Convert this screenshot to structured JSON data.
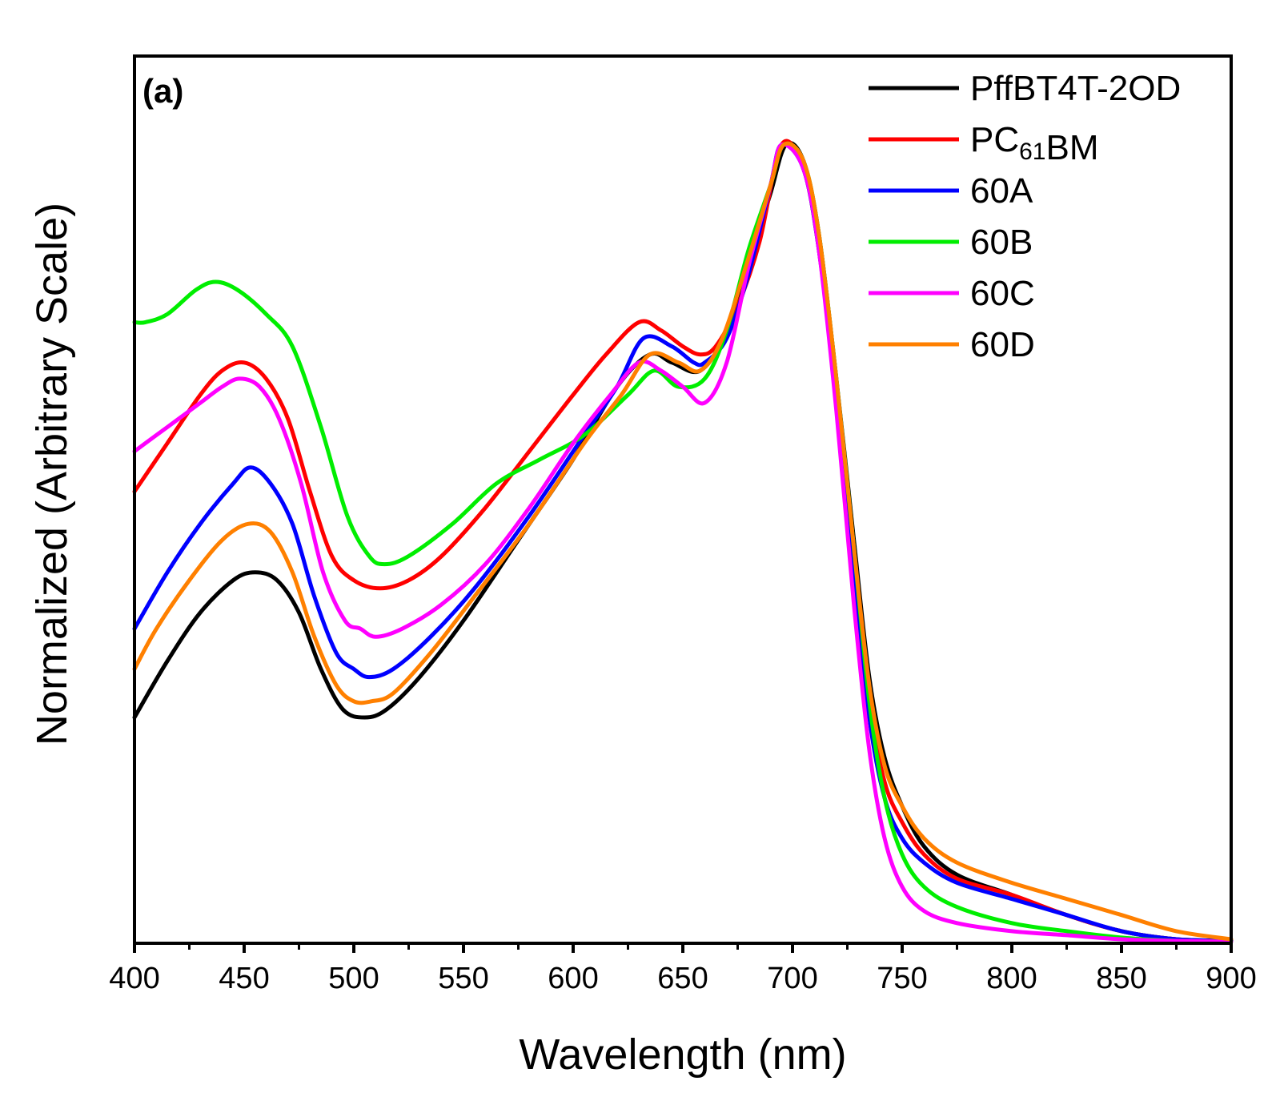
{
  "chart_data": {
    "type": "line",
    "panel_label": "(a)",
    "xlabel": "Wavelength (nm)",
    "ylabel": "Normalized (Arbitrary Scale)",
    "xlim": [
      400,
      900
    ],
    "ylim": [
      0,
      1.1
    ],
    "x_ticks": [
      400,
      450,
      500,
      550,
      600,
      650,
      700,
      750,
      800,
      850,
      900
    ],
    "x_tick_labels": [
      "400",
      "450",
      "500",
      "550",
      "600",
      "650",
      "700",
      "750",
      "800",
      "850",
      "900"
    ],
    "y_ticks_shown": false,
    "grid": false,
    "legend_position": "top-right",
    "series": [
      {
        "name": "PffBT4T-2OD",
        "label_parts": [
          {
            "text": "PffBT4T-2OD",
            "sub": false
          }
        ],
        "color": "#000000",
        "x": [
          400,
          415,
          430,
          445,
          455,
          465,
          475,
          485,
          495,
          505,
          515,
          530,
          550,
          575,
          600,
          620,
          635,
          645,
          658,
          670,
          682,
          690,
          697,
          705,
          712,
          720,
          728,
          735,
          742,
          750,
          760,
          775,
          800,
          825,
          850,
          875,
          900
        ],
        "y": [
          0.28,
          0.35,
          0.41,
          0.45,
          0.46,
          0.45,
          0.41,
          0.34,
          0.29,
          0.28,
          0.29,
          0.33,
          0.4,
          0.5,
          0.6,
          0.69,
          0.73,
          0.72,
          0.71,
          0.76,
          0.86,
          0.93,
          0.99,
          0.97,
          0.88,
          0.7,
          0.5,
          0.33,
          0.23,
          0.17,
          0.12,
          0.085,
          0.06,
          0.035,
          0.015,
          0.005,
          0.003
        ]
      },
      {
        "name": "PC61BM",
        "label_parts": [
          {
            "text": "PC",
            "sub": false
          },
          {
            "text": "61",
            "sub": true
          },
          {
            "text": "BM",
            "sub": false
          }
        ],
        "color": "#ff0000",
        "x": [
          400,
          415,
          430,
          440,
          450,
          460,
          470,
          480,
          490,
          500,
          512,
          525,
          540,
          560,
          580,
          600,
          615,
          630,
          640,
          650,
          658,
          665,
          675,
          685,
          695,
          705,
          712,
          720,
          728,
          735,
          742,
          750,
          760,
          775,
          800,
          825,
          850,
          875,
          900
        ],
        "y": [
          0.56,
          0.62,
          0.68,
          0.71,
          0.72,
          0.7,
          0.65,
          0.56,
          0.48,
          0.45,
          0.44,
          0.45,
          0.48,
          0.54,
          0.61,
          0.68,
          0.73,
          0.77,
          0.76,
          0.74,
          0.73,
          0.74,
          0.79,
          0.87,
          0.99,
          0.96,
          0.86,
          0.68,
          0.48,
          0.3,
          0.2,
          0.15,
          0.11,
          0.08,
          0.06,
          0.035,
          0.015,
          0.005,
          0.003
        ]
      },
      {
        "name": "60A",
        "label_parts": [
          {
            "text": "60A",
            "sub": false
          }
        ],
        "color": "#0000ff",
        "x": [
          400,
          415,
          430,
          445,
          453,
          462,
          472,
          482,
          492,
          500,
          507,
          518,
          535,
          555,
          580,
          605,
          620,
          632,
          645,
          655,
          660,
          670,
          680,
          690,
          695,
          705,
          712,
          720,
          728,
          735,
          742,
          750,
          760,
          775,
          800,
          825,
          850,
          875,
          900
        ],
        "y": [
          0.39,
          0.46,
          0.52,
          0.57,
          0.59,
          0.57,
          0.52,
          0.43,
          0.36,
          0.34,
          0.33,
          0.34,
          0.38,
          0.44,
          0.53,
          0.63,
          0.69,
          0.75,
          0.74,
          0.72,
          0.72,
          0.75,
          0.83,
          0.94,
          0.99,
          0.96,
          0.86,
          0.68,
          0.46,
          0.28,
          0.18,
          0.13,
          0.1,
          0.075,
          0.055,
          0.035,
          0.015,
          0.005,
          0.003
        ]
      },
      {
        "name": "60B",
        "label_parts": [
          {
            "text": "60B",
            "sub": false
          }
        ],
        "color": "#00ee00",
        "x": [
          400,
          405,
          415,
          428,
          437,
          447,
          460,
          472,
          485,
          497,
          507,
          514,
          525,
          545,
          565,
          585,
          605,
          625,
          637,
          648,
          660,
          670,
          680,
          690,
          696,
          705,
          712,
          720,
          728,
          735,
          742,
          750,
          760,
          775,
          800,
          825,
          850,
          875,
          900
        ],
        "y": [
          0.77,
          0.77,
          0.78,
          0.81,
          0.82,
          0.81,
          0.78,
          0.74,
          0.64,
          0.53,
          0.48,
          0.47,
          0.48,
          0.52,
          0.57,
          0.6,
          0.63,
          0.68,
          0.71,
          0.69,
          0.7,
          0.76,
          0.86,
          0.94,
          0.99,
          0.97,
          0.88,
          0.7,
          0.49,
          0.3,
          0.18,
          0.11,
          0.07,
          0.045,
          0.025,
          0.015,
          0.007,
          0.003,
          0.002
        ]
      },
      {
        "name": "60C",
        "label_parts": [
          {
            "text": "60C",
            "sub": false
          }
        ],
        "color": "#ff00ff",
        "x": [
          400,
          410,
          420,
          430,
          440,
          448,
          457,
          466,
          476,
          486,
          496,
          503,
          510,
          522,
          540,
          560,
          580,
          600,
          617,
          630,
          640,
          650,
          660,
          670,
          680,
          690,
          695,
          705,
          712,
          720,
          728,
          735,
          742,
          750,
          760,
          775,
          800,
          825,
          850,
          875,
          900
        ],
        "y": [
          0.61,
          0.63,
          0.65,
          0.67,
          0.69,
          0.7,
          0.69,
          0.65,
          0.57,
          0.46,
          0.4,
          0.39,
          0.38,
          0.39,
          0.42,
          0.47,
          0.54,
          0.62,
          0.68,
          0.72,
          0.71,
          0.69,
          0.67,
          0.72,
          0.84,
          0.94,
          0.99,
          0.96,
          0.86,
          0.66,
          0.42,
          0.24,
          0.13,
          0.07,
          0.04,
          0.025,
          0.015,
          0.01,
          0.005,
          0.003,
          0.002
        ]
      },
      {
        "name": "60D",
        "label_parts": [
          {
            "text": "60D",
            "sub": false
          }
        ],
        "color": "#ff8000",
        "x": [
          400,
          410,
          425,
          440,
          452,
          462,
          472,
          482,
          492,
          500,
          508,
          518,
          535,
          555,
          580,
          605,
          622,
          635,
          648,
          658,
          668,
          680,
          690,
          696,
          705,
          712,
          720,
          728,
          735,
          742,
          750,
          760,
          775,
          800,
          825,
          850,
          875,
          900
        ],
        "y": [
          0.34,
          0.39,
          0.45,
          0.5,
          0.52,
          0.51,
          0.46,
          0.38,
          0.32,
          0.3,
          0.3,
          0.31,
          0.36,
          0.43,
          0.52,
          0.62,
          0.68,
          0.73,
          0.72,
          0.71,
          0.75,
          0.85,
          0.94,
          0.99,
          0.97,
          0.88,
          0.7,
          0.49,
          0.32,
          0.22,
          0.17,
          0.13,
          0.1,
          0.075,
          0.055,
          0.035,
          0.015,
          0.005
        ]
      }
    ]
  }
}
